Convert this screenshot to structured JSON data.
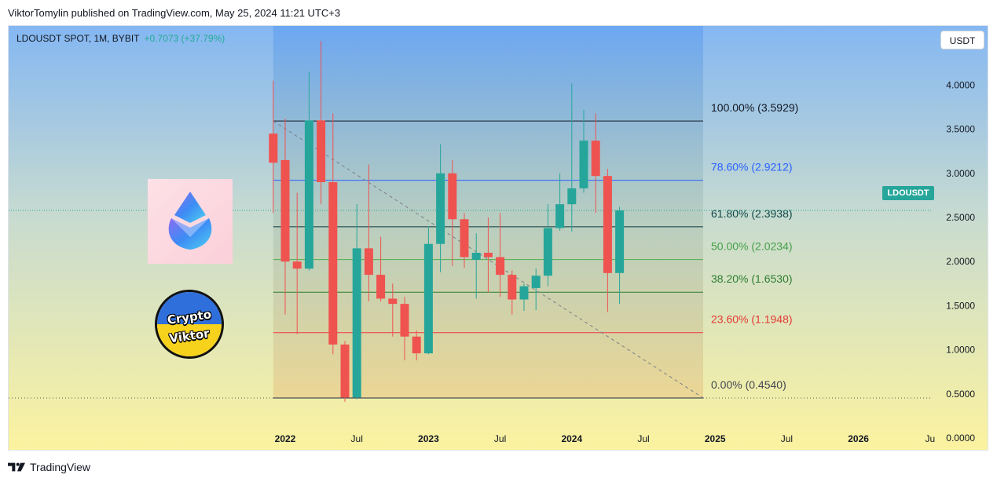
{
  "header": {
    "published": "ViktorTomylin published on TradingView.com, May 25, 2024 11:21 UTC+3"
  },
  "chart_data": {
    "type": "candlestick",
    "symbol_line": "LDOUSDT SPOT, 1M, BYBIT",
    "change_line": "+0.7073 (+37.79%)",
    "currency": "USDT",
    "last_price_label": "LDOUSDT",
    "last_price": 2.58,
    "ylim": [
      0.0,
      4.3
    ],
    "yticks": [
      "4.0000",
      "3.5000",
      "3.0000",
      "2.5000",
      "2.0000",
      "1.5000",
      "1.0000",
      "0.5000",
      "0.0000"
    ],
    "ytick_values": [
      4.0,
      3.5,
      3.0,
      2.5,
      2.0,
      1.5,
      1.0,
      0.5,
      0.0
    ],
    "xticks": [
      {
        "label": "2022",
        "month": "2022-01",
        "bold": true
      },
      {
        "label": "Jul",
        "month": "2022-07",
        "bold": false
      },
      {
        "label": "2023",
        "month": "2023-01",
        "bold": true
      },
      {
        "label": "Jul",
        "month": "2023-07",
        "bold": false
      },
      {
        "label": "2024",
        "month": "2024-01",
        "bold": true
      },
      {
        "label": "Jul",
        "month": "2024-07",
        "bold": false
      },
      {
        "label": "2025",
        "month": "2025-01",
        "bold": true
      },
      {
        "label": "Jul",
        "month": "2025-07",
        "bold": false
      },
      {
        "label": "2026",
        "month": "2026-01",
        "bold": true
      },
      {
        "label": "Ju",
        "month": "2026-07",
        "bold": false
      }
    ],
    "candles": [
      {
        "t": "2021-12",
        "o": 3.45,
        "h": 4.05,
        "l": 2.55,
        "c": 3.12
      },
      {
        "t": "2022-01",
        "o": 3.15,
        "h": 3.62,
        "l": 1.4,
        "c": 2.0
      },
      {
        "t": "2022-02",
        "o": 2.0,
        "h": 2.78,
        "l": 1.18,
        "c": 1.92
      },
      {
        "t": "2022-03",
        "o": 1.92,
        "h": 4.15,
        "l": 1.9,
        "c": 3.6
      },
      {
        "t": "2022-04",
        "o": 3.6,
        "h": 4.5,
        "l": 2.65,
        "c": 2.9
      },
      {
        "t": "2022-05",
        "o": 2.9,
        "h": 3.68,
        "l": 0.95,
        "c": 1.06
      },
      {
        "t": "2022-06",
        "o": 1.06,
        "h": 1.1,
        "l": 0.41,
        "c": 0.46
      },
      {
        "t": "2022-07",
        "o": 0.46,
        "h": 2.65,
        "l": 0.44,
        "c": 2.15
      },
      {
        "t": "2022-08",
        "o": 2.15,
        "h": 3.1,
        "l": 1.55,
        "c": 1.85
      },
      {
        "t": "2022-09",
        "o": 1.85,
        "h": 2.28,
        "l": 1.55,
        "c": 1.58
      },
      {
        "t": "2022-10",
        "o": 1.58,
        "h": 1.75,
        "l": 1.15,
        "c": 1.52
      },
      {
        "t": "2022-11",
        "o": 1.52,
        "h": 1.6,
        "l": 0.88,
        "c": 1.15
      },
      {
        "t": "2022-12",
        "o": 1.15,
        "h": 1.22,
        "l": 0.88,
        "c": 0.96
      },
      {
        "t": "2023-01",
        "o": 0.96,
        "h": 2.4,
        "l": 0.95,
        "c": 2.2
      },
      {
        "t": "2023-02",
        "o": 2.2,
        "h": 3.33,
        "l": 1.88,
        "c": 3.0
      },
      {
        "t": "2023-03",
        "o": 3.0,
        "h": 3.15,
        "l": 1.95,
        "c": 2.48
      },
      {
        "t": "2023-04",
        "o": 2.48,
        "h": 2.55,
        "l": 1.93,
        "c": 2.05
      },
      {
        "t": "2023-05",
        "o": 2.02,
        "h": 2.32,
        "l": 1.58,
        "c": 2.1
      },
      {
        "t": "2023-06",
        "o": 2.1,
        "h": 2.5,
        "l": 1.65,
        "c": 2.05
      },
      {
        "t": "2023-07",
        "o": 2.05,
        "h": 2.55,
        "l": 1.6,
        "c": 1.85
      },
      {
        "t": "2023-08",
        "o": 1.85,
        "h": 1.9,
        "l": 1.4,
        "c": 1.57
      },
      {
        "t": "2023-09",
        "o": 1.57,
        "h": 1.75,
        "l": 1.44,
        "c": 1.72
      },
      {
        "t": "2023-10",
        "o": 1.7,
        "h": 1.92,
        "l": 1.45,
        "c": 1.84
      },
      {
        "t": "2023-11",
        "o": 1.84,
        "h": 2.65,
        "l": 1.72,
        "c": 2.38
      },
      {
        "t": "2023-12",
        "o": 2.38,
        "h": 3.0,
        "l": 2.35,
        "c": 2.65
      },
      {
        "t": "2024-01",
        "o": 2.65,
        "h": 4.02,
        "l": 2.34,
        "c": 2.83
      },
      {
        "t": "2024-02",
        "o": 2.83,
        "h": 3.72,
        "l": 2.78,
        "c": 3.37
      },
      {
        "t": "2024-03",
        "o": 3.37,
        "h": 3.68,
        "l": 2.55,
        "c": 2.97
      },
      {
        "t": "2024-04",
        "o": 2.97,
        "h": 3.05,
        "l": 1.43,
        "c": 1.87
      },
      {
        "t": "2024-05",
        "o": 1.87,
        "h": 2.62,
        "l": 1.52,
        "c": 2.58
      }
    ],
    "fib_levels": [
      {
        "label": "100.00% (3.5929)",
        "value": 3.5929,
        "line_color": "#131722",
        "text_color": "#131722"
      },
      {
        "label": "78.60% (2.9212)",
        "value": 2.9212,
        "line_color": "#2962ff",
        "text_color": "#2962ff"
      },
      {
        "label": "61.80% (2.3938)",
        "value": 2.3938,
        "line_color": "#0b3b3b",
        "text_color": "#0f4a47"
      },
      {
        "label": "50.00% (2.0234)",
        "value": 2.0234,
        "line_color": "#4caf50",
        "text_color": "#43a047"
      },
      {
        "label": "38.20% (1.6530)",
        "value": 1.653,
        "line_color": "#2e7d32",
        "text_color": "#2e7d32"
      },
      {
        "label": "23.60% (1.1948)",
        "value": 1.1948,
        "line_color": "#f23645",
        "text_color": "#e53935"
      },
      {
        "label": "0.00% (0.4540)",
        "value": 0.454,
        "line_color": "#1e2a40",
        "text_color": "#434651"
      }
    ],
    "fib_range": {
      "from": "2021-12",
      "to": "2024-12"
    },
    "trend_line": {
      "from": {
        "t": "2021-12",
        "v": 3.5929
      },
      "to": {
        "t": "2024-12",
        "v": 0.454
      }
    },
    "colors": {
      "up": "#26a69a",
      "down": "#ef5350",
      "bg_top": "#84b7f2",
      "bg_bottom": "#fcf39f"
    },
    "grid": false,
    "legend": "top-left"
  },
  "logos": {
    "badge_line1": "Crypto",
    "badge_line2": "Viktor",
    "token_icon": "lido-droplet-icon"
  },
  "footer": {
    "brand": "TradingView",
    "icon": "tradingview-logo-icon"
  }
}
